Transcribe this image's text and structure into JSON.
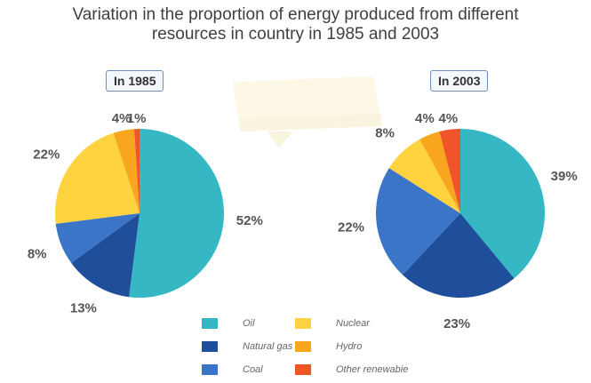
{
  "title_line1": "Variation in the proportion of energy produced from different",
  "title_line2": "resources in country in 1985 and 2003",
  "colors": {
    "Oil": "#36B7C4",
    "Natural gas": "#1F4E9B",
    "Coal": "#3A75C8",
    "Nuclear": "#FFD23F",
    "Hydro": "#F8A61D",
    "Other renewable": "#F0552A"
  },
  "chart_data": [
    {
      "type": "pie",
      "title": "In 1985",
      "slices": [
        {
          "label": "Oil",
          "value": 52,
          "text": "52%"
        },
        {
          "label": "Natural gas",
          "value": 13,
          "text": "13%"
        },
        {
          "label": "Coal",
          "value": 8,
          "text": "8%"
        },
        {
          "label": "Nuclear",
          "value": 22,
          "text": "22%"
        },
        {
          "label": "Hydro",
          "value": 4,
          "text": "4%"
        },
        {
          "label": "Other renewable",
          "value": 1,
          "text": "1%"
        }
      ]
    },
    {
      "type": "pie",
      "title": "In 2003",
      "slices": [
        {
          "label": "Oil",
          "value": 39,
          "text": "39%"
        },
        {
          "label": "Natural gas",
          "value": 23,
          "text": "23%"
        },
        {
          "label": "Coal",
          "value": 22,
          "text": "22%"
        },
        {
          "label": "Nuclear",
          "value": 8,
          "text": "8%"
        },
        {
          "label": "Hydro",
          "value": 4,
          "text": "4%"
        },
        {
          "label": "Other renewable",
          "value": 4,
          "text": "4%"
        }
      ]
    }
  ],
  "legend": [
    {
      "label": "Oil",
      "key": "Oil"
    },
    {
      "label": "Nuclear",
      "key": "Nuclear"
    },
    {
      "label": "Natural gas",
      "key": "Natural gas"
    },
    {
      "label": "Hydro",
      "key": "Hydro"
    },
    {
      "label": "Coal",
      "key": "Coal"
    },
    {
      "label": "Other renewabie",
      "key": "Other renewable"
    }
  ]
}
